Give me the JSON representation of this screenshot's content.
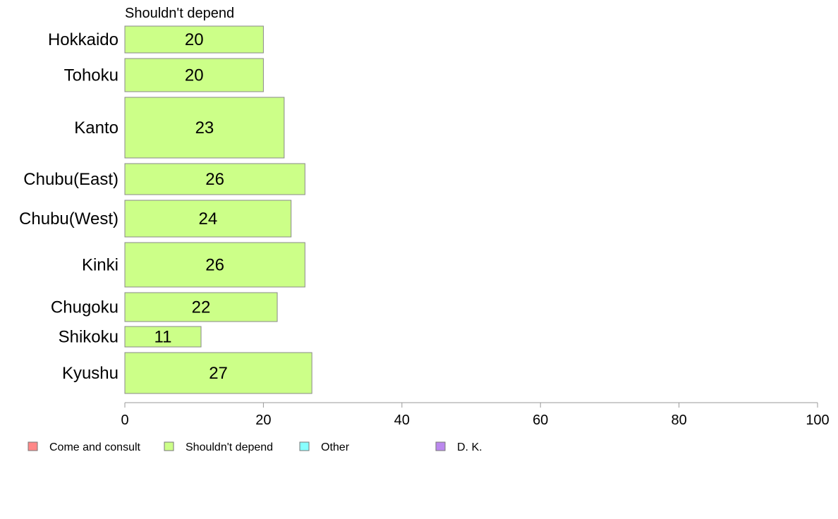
{
  "chart_data": {
    "type": "bar",
    "orientation": "horizontal",
    "title": "",
    "series_title": "Shouldn't depend",
    "categories": [
      "Hokkaido",
      "Tohoku",
      "Kanto",
      "Chubu(East)",
      "Chubu(West)",
      "Kinki",
      "Chugoku",
      "Shikoku",
      "Kyushu"
    ],
    "series": [
      {
        "name": "Shouldn't depend",
        "values": [
          20,
          20,
          23,
          26,
          24,
          26,
          22,
          11,
          27
        ],
        "color": "#ccff88"
      }
    ],
    "data_labels": [
      "20",
      "20",
      "23",
      "26",
      "24",
      "26",
      "22",
      "11",
      "27"
    ],
    "xlim": [
      0,
      100
    ],
    "x_ticks": [
      0,
      20,
      40,
      60,
      80,
      100
    ],
    "x_tick_labels": [
      "0",
      "20",
      "40",
      "60",
      "80",
      "100"
    ],
    "xlabel": "",
    "ylabel": "",
    "grid": false,
    "legend_position": "bottom-left",
    "legend": [
      {
        "label": "Come and consult",
        "color": "#ff8888"
      },
      {
        "label": "Shouldn't depend",
        "color": "#ccff88"
      },
      {
        "label": "Other",
        "color": "#88ffff"
      },
      {
        "label": "D. K.",
        "color": "#bb88ee"
      }
    ]
  }
}
